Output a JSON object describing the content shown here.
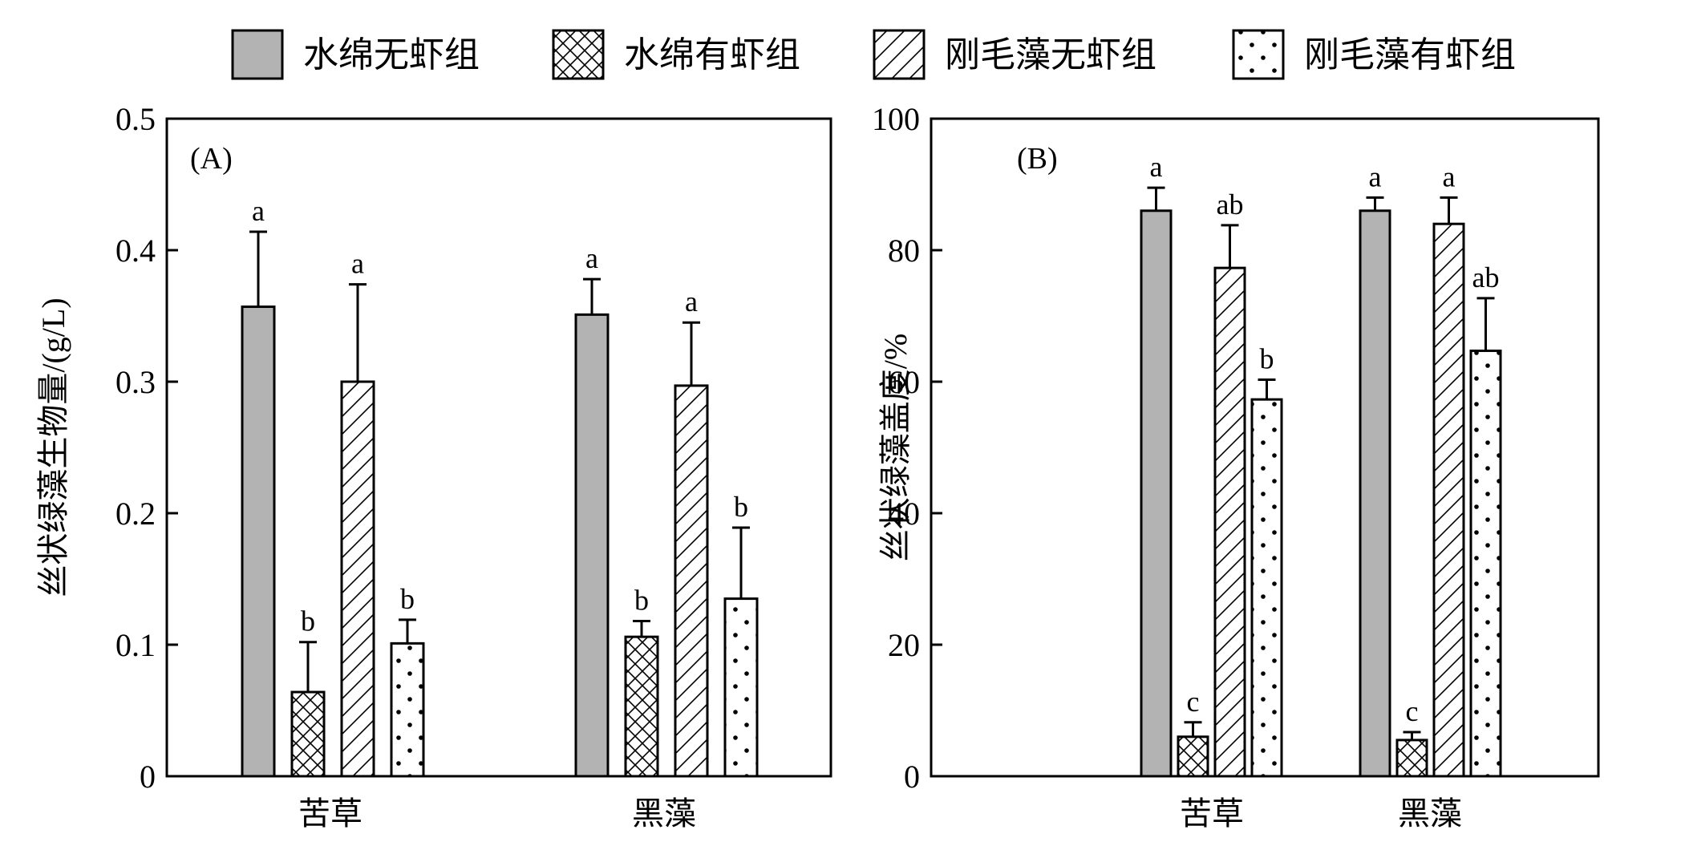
{
  "legend": {
    "items": [
      {
        "label": "水绵无虾组",
        "pattern": "solid-gray"
      },
      {
        "label": "水绵有虾组",
        "pattern": "crosshatch"
      },
      {
        "label": "刚毛藻无虾组",
        "pattern": "diagonal"
      },
      {
        "label": "刚毛藻有虾组",
        "pattern": "dots"
      }
    ],
    "placement": "top"
  },
  "colors": {
    "solid_fill": "#b3b3b3",
    "stroke": "#000000",
    "background": "#ffffff"
  },
  "chart_data": [
    {
      "type": "bar",
      "panel_label": "(A)",
      "ylabel": "丝状绿藻生物量/(g/L)",
      "xlabel": "",
      "ylim": [
        0,
        0.5
      ],
      "yticks": [
        0,
        0.1,
        0.2,
        0.3,
        0.4,
        0.5
      ],
      "ytick_labels": [
        "0",
        "0.1",
        "0.2",
        "0.3",
        "0.4",
        "0.5"
      ],
      "categories": [
        "苦草",
        "黑藻"
      ],
      "grid": false,
      "series": [
        {
          "name": "水绵无虾组",
          "pattern": "solid-gray",
          "values": [
            0.357,
            0.351
          ],
          "errors": [
            0.057,
            0.027
          ],
          "letters": [
            "a",
            "a"
          ]
        },
        {
          "name": "水绵有虾组",
          "pattern": "crosshatch",
          "values": [
            0.064,
            0.106
          ],
          "errors": [
            0.038,
            0.012
          ],
          "letters": [
            "b",
            "b"
          ]
        },
        {
          "name": "刚毛藻无虾组",
          "pattern": "diagonal",
          "values": [
            0.3,
            0.297
          ],
          "errors": [
            0.074,
            0.048
          ],
          "letters": [
            "a",
            "a"
          ]
        },
        {
          "name": "刚毛藻有虾组",
          "pattern": "dots",
          "values": [
            0.101,
            0.135
          ],
          "errors": [
            0.018,
            0.054
          ],
          "letters": [
            "b",
            "b"
          ]
        }
      ]
    },
    {
      "type": "bar",
      "panel_label": "(B)",
      "ylabel": "丝状绿藻盖度/%",
      "xlabel": "",
      "ylim": [
        0,
        100
      ],
      "yticks": [
        0,
        20,
        40,
        60,
        80,
        100
      ],
      "ytick_labels": [
        "0",
        "20",
        "40",
        "60",
        "80",
        "100"
      ],
      "categories": [
        "苦草",
        "黑藻"
      ],
      "grid": false,
      "series": [
        {
          "name": "水绵无虾组",
          "pattern": "solid-gray",
          "values": [
            86.0,
            86.0
          ],
          "errors": [
            3.5,
            2.0
          ],
          "letters": [
            "a",
            "a"
          ]
        },
        {
          "name": "水绵有虾组",
          "pattern": "crosshatch",
          "values": [
            6.0,
            5.5
          ],
          "errors": [
            2.2,
            1.2
          ],
          "letters": [
            "c",
            "c"
          ]
        },
        {
          "name": "刚毛藻无虾组",
          "pattern": "diagonal",
          "values": [
            77.3,
            84.0
          ],
          "errors": [
            6.5,
            4.0
          ],
          "letters": [
            "ab",
            "a"
          ]
        },
        {
          "name": "刚毛藻有虾组",
          "pattern": "dots",
          "values": [
            57.3,
            64.7
          ],
          "errors": [
            3.0,
            8.0
          ],
          "letters": [
            "b",
            "ab"
          ]
        }
      ]
    }
  ]
}
